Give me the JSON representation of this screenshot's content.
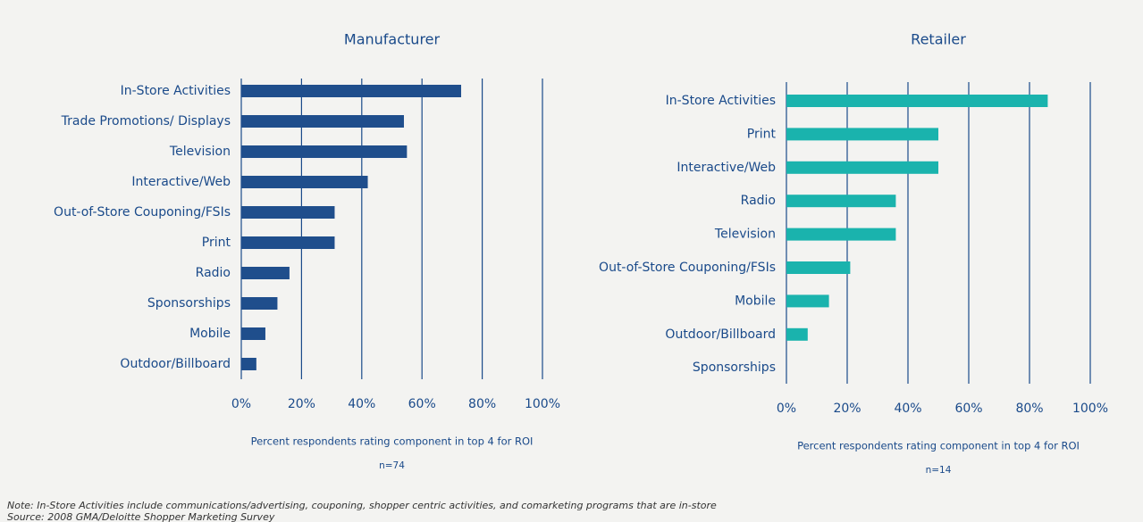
{
  "chart_data": [
    {
      "type": "bar",
      "orientation": "horizontal",
      "title": "Manufacturer",
      "categories": [
        "In-Store Activities",
        "Trade Promotions/ Displays",
        "Television",
        "Interactive/Web",
        "Out-of-Store Couponing/FSIs",
        "Print",
        "Radio",
        "Sponsorships",
        "Mobile",
        "Outdoor/Billboard"
      ],
      "values": [
        73,
        54,
        55,
        42,
        31,
        31,
        16,
        12,
        8,
        5
      ],
      "color": "#1f4e8c",
      "xlim": [
        0,
        100
      ],
      "xticks": [
        {
          "value": 0,
          "label": "0%"
        },
        {
          "value": 20,
          "label": "20%"
        },
        {
          "value": 40,
          "label": "40%"
        },
        {
          "value": 60,
          "label": "60%"
        },
        {
          "value": 80,
          "label": "80%"
        },
        {
          "value": 100,
          "label": "100%"
        }
      ],
      "grid": true,
      "xlabel": "Percent respondents rating component in top 4 for ROI",
      "note": "n=74"
    },
    {
      "type": "bar",
      "orientation": "horizontal",
      "title": "Retailer",
      "categories": [
        "In-Store Activities",
        "Print",
        "Interactive/Web",
        "Radio",
        "Television",
        "Out-of-Store Couponing/FSIs",
        "Mobile",
        "Outdoor/Billboard",
        "Sponsorships"
      ],
      "values": [
        86,
        50,
        50,
        36,
        36,
        21,
        14,
        7,
        0
      ],
      "color": "#1ab3ad",
      "xlim": [
        0,
        100
      ],
      "xticks": [
        {
          "value": 0,
          "label": "0%"
        },
        {
          "value": 20,
          "label": "20%"
        },
        {
          "value": 40,
          "label": "40%"
        },
        {
          "value": 60,
          "label": "60%"
        },
        {
          "value": 80,
          "label": "80%"
        },
        {
          "value": 100,
          "label": "100%"
        }
      ],
      "grid": true,
      "xlabel": "Percent respondents rating component in top 4 for ROI",
      "note": "n=14"
    }
  ],
  "footnote": "Note: In-Store Activities include communications/advertising, couponing, shopper centric activities, and comarketing programs that are in-store",
  "source": "Source: 2008 GMA/Deloitte Shopper Marketing Survey"
}
